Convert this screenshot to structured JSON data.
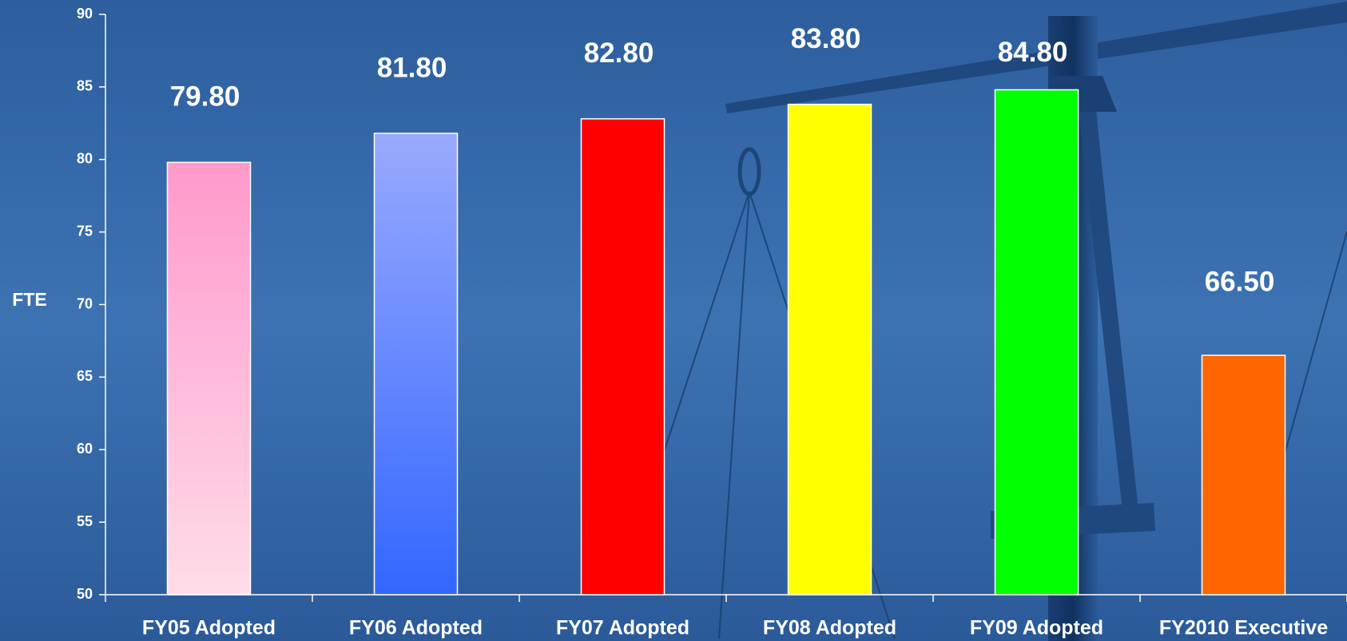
{
  "chart_data": {
    "type": "bar",
    "y_label": "FTE",
    "categories": [
      "FY05 Adopted",
      "FY06 Adopted",
      "FY07 Adopted",
      "FY08 Adopted",
      "FY09 Adopted",
      "FY2010 Executive"
    ],
    "values": [
      79.8,
      81.8,
      82.8,
      83.8,
      84.8,
      66.5
    ],
    "value_labels": [
      "79.80",
      "81.80",
      "82.80",
      "83.80",
      "84.80",
      "66.50"
    ],
    "colors": [
      "#ff99cc",
      "#99aaff",
      "#ff0000",
      "#ffff00",
      "#00ff00",
      "#ff6600"
    ],
    "ylim": [
      50,
      90
    ],
    "yticks": [
      50,
      55,
      60,
      65,
      70,
      75,
      80,
      85,
      90
    ]
  }
}
